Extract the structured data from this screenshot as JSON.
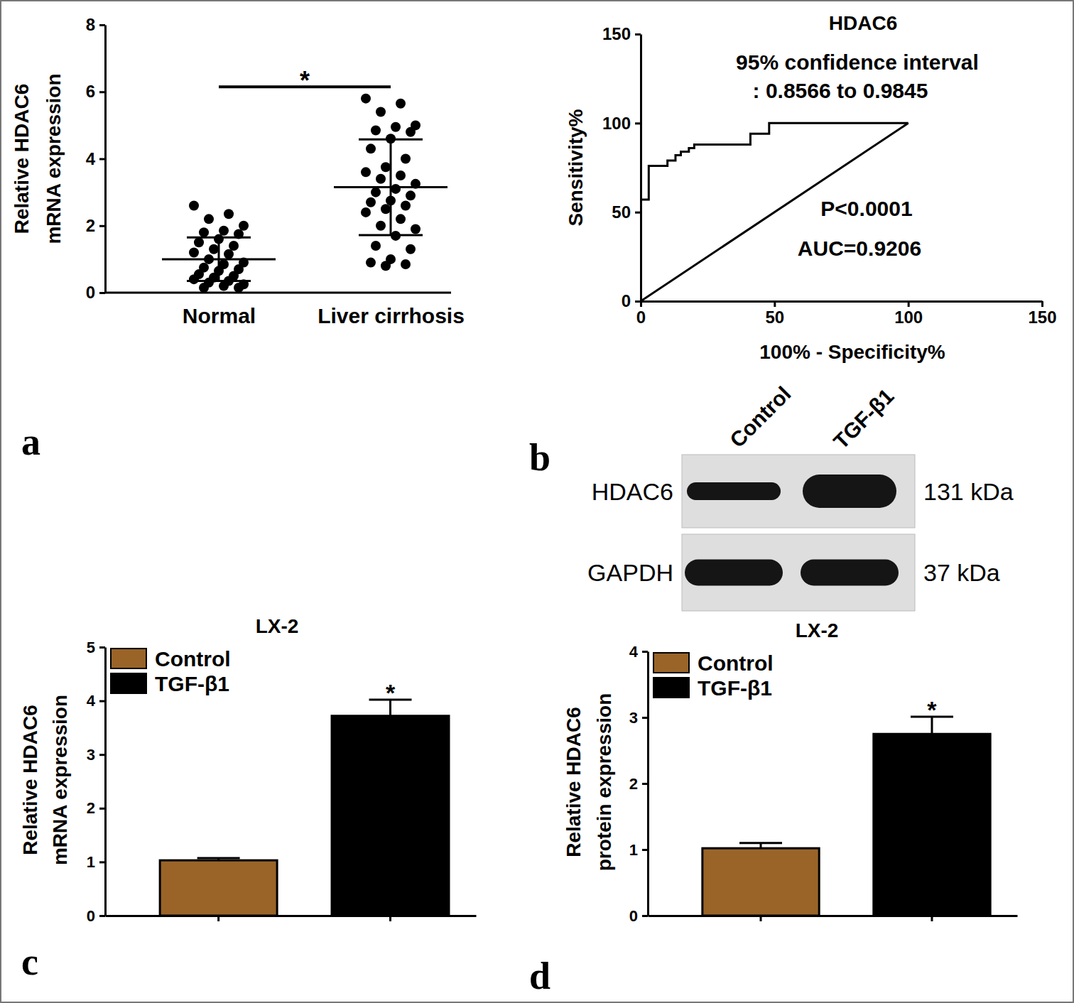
{
  "panel_labels": [
    "a",
    "b",
    "c",
    "d"
  ],
  "chart_data": [
    {
      "type": "dot",
      "categories": [
        "Normal",
        "Liver cirrhosis"
      ],
      "ylabel": [
        "Relative HDAC6",
        "mRNA expression"
      ],
      "ylim": [
        0,
        8
      ],
      "yticks": [
        0,
        2,
        4,
        6,
        8
      ],
      "color": "#000000",
      "points": [
        [
          2.6,
          2.35,
          2.2,
          2.0,
          1.85,
          1.8,
          1.75,
          1.6,
          1.5,
          1.4,
          1.3,
          1.2,
          1.15,
          1.0,
          0.9,
          0.85,
          0.75,
          0.7,
          0.65,
          0.55,
          0.5,
          0.45,
          0.4,
          0.35,
          0.3,
          0.25,
          0.2,
          0.15,
          0.15
        ],
        [
          5.8,
          5.65,
          5.4,
          5.0,
          4.95,
          4.85,
          4.8,
          4.6,
          4.3,
          4.0,
          3.75,
          3.6,
          3.5,
          3.4,
          3.25,
          3.1,
          3.0,
          2.9,
          2.75,
          2.7,
          2.6,
          2.5,
          2.4,
          2.2,
          2.0,
          1.9,
          1.7,
          1.4,
          1.3,
          1.0,
          0.9,
          0.85,
          0.8
        ]
      ],
      "means": [
        1.0,
        3.15
      ],
      "sd": [
        0.65,
        1.43
      ],
      "significance": {
        "text": "*",
        "y": 6.15
      }
    },
    {
      "type": "line",
      "title": "HDAC6",
      "annotations": [
        "95% confidence interval",
        ": 0.8566 to 0.9845",
        "P<0.0001",
        "AUC=0.9206"
      ],
      "xlabel": "100% - Specificity%",
      "ylabel": "Sensitivity%",
      "xlim": [
        0,
        150
      ],
      "xticks": [
        0,
        50,
        100,
        150
      ],
      "ylim": [
        0,
        150
      ],
      "yticks": [
        0,
        50,
        100,
        150
      ],
      "series": [
        {
          "color": "#000000",
          "x": [
            0,
            0,
            3,
            3,
            10,
            10,
            13,
            13,
            15,
            15,
            18,
            18,
            20,
            20,
            41,
            41,
            48,
            48,
            100
          ],
          "values": [
            0,
            57,
            57,
            76,
            76,
            79,
            79,
            82,
            82,
            84,
            84,
            86,
            86,
            88,
            88,
            94,
            94,
            100,
            100
          ]
        },
        {
          "color": "#000000",
          "x": [
            0,
            100
          ],
          "values": [
            0,
            100
          ]
        }
      ]
    },
    {
      "type": "bar",
      "title": "LX-2",
      "ylabel": [
        "Relative HDAC6",
        "mRNA expression"
      ],
      "categories": [
        null,
        null
      ],
      "ylim": [
        0,
        5
      ],
      "yticks": [
        0,
        1,
        2,
        3,
        4,
        5
      ],
      "legend": "upper left",
      "series": [
        {
          "name": "Control",
          "color": "#9a6428",
          "values": [
            1.03,
            null
          ],
          "errors": [
            0.04,
            null
          ]
        },
        {
          "name": "TGF-β1",
          "color": "#000000",
          "values": [
            null,
            3.72
          ],
          "errors": [
            null,
            0.3
          ]
        }
      ],
      "significance": {
        "text": "*",
        "index": 1
      }
    },
    {
      "type": "bar",
      "title": "LX-2",
      "ylabel": [
        "Relative HDAC6",
        "protein expression"
      ],
      "categories": [
        null,
        null
      ],
      "ylim": [
        0,
        4
      ],
      "yticks": [
        0,
        1,
        2,
        3,
        4
      ],
      "legend": "upper left",
      "series": [
        {
          "name": "Control",
          "color": "#9a6428",
          "values": [
            1.02,
            null
          ],
          "errors": [
            0.08,
            null
          ]
        },
        {
          "name": "TGF-β1",
          "color": "#000000",
          "values": [
            null,
            2.75
          ],
          "errors": [
            null,
            0.26
          ]
        }
      ],
      "significance": {
        "text": "*",
        "index": 1
      }
    }
  ],
  "blot": {
    "lanes": [
      "Control",
      "TGF-β1"
    ],
    "rows": [
      {
        "label": "HDAC6",
        "size": "131 kDa",
        "intensity": [
          1,
          2.75
        ]
      },
      {
        "label": "GAPDH",
        "size": "37 kDa",
        "intensity": [
          1,
          1
        ]
      }
    ]
  }
}
